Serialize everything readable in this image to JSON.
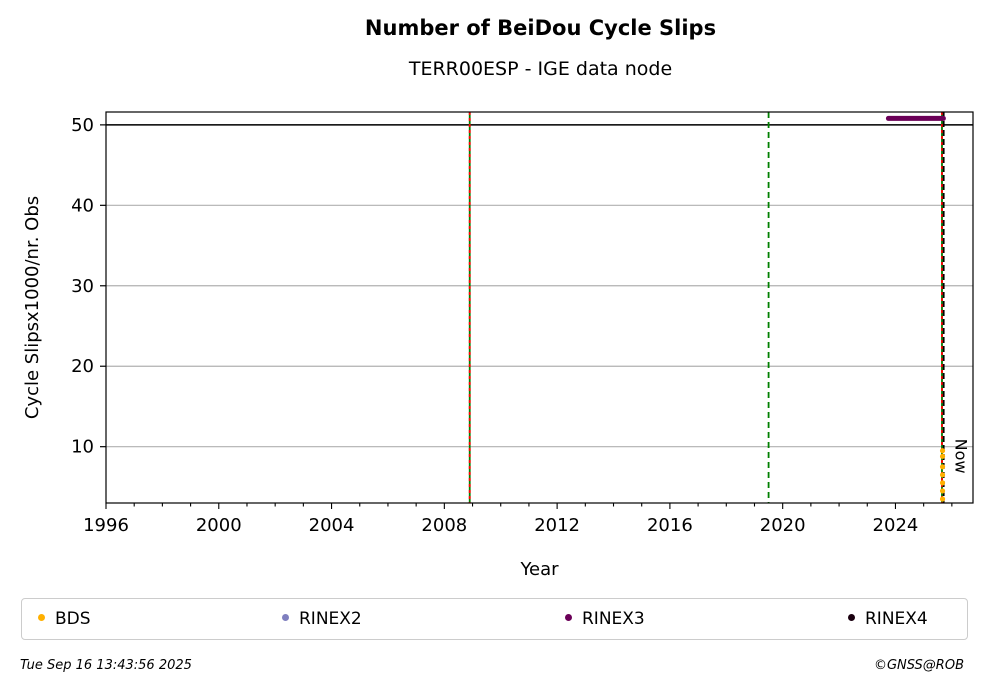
{
  "chart_data": {
    "type": "scatter",
    "title": "Number of BeiDou Cycle Slips",
    "subtitle": "TERR00ESP - IGE data node",
    "xlabel": "Year",
    "ylabel": "Cycle Slipsx1000/nr. Obs",
    "xlim": [
      1996,
      2026.75
    ],
    "ylim": [
      3,
      51.6
    ],
    "xticks": [
      1996,
      2000,
      2004,
      2008,
      2012,
      2016,
      2020,
      2024
    ],
    "xtick_labels": [
      "1996",
      "2000",
      "2004",
      "2008",
      "2012",
      "2016",
      "2020",
      "2024"
    ],
    "yticks": [
      10,
      20,
      30,
      40,
      50
    ],
    "ytick_labels": [
      "10",
      "20",
      "30",
      "40",
      "50"
    ],
    "grid": "horizontal",
    "limit_line": 50,
    "vertical_lines": [
      {
        "x": 2008.9,
        "style": "red-green-dashed"
      },
      {
        "x": 2019.5,
        "style": "green-dashed"
      },
      {
        "x": 2025.65,
        "style": "red-green-dashed"
      }
    ],
    "now_line": {
      "x": 2025.71,
      "label": "Now"
    },
    "series": [
      {
        "name": "BDS",
        "color": "#ffb000",
        "points": [
          [
            2025.67,
            3.5
          ],
          [
            2025.67,
            4.5
          ],
          [
            2025.67,
            5.5
          ],
          [
            2025.67,
            6.5
          ],
          [
            2025.67,
            7.5
          ],
          [
            2025.67,
            8.8
          ],
          [
            2025.67,
            9.5
          ]
        ]
      },
      {
        "name": "RINEX2",
        "color": "#7f7fbf",
        "points": []
      },
      {
        "name": "RINEX3",
        "color": "#6b0058",
        "start": 2023.75,
        "end": 2025.7,
        "y": 50.8
      },
      {
        "name": "RINEX4",
        "color": "#1a0010",
        "points": []
      }
    ],
    "legend": "bottom"
  },
  "footer": {
    "timestamp": "Tue Sep 16 13:43:56 2025",
    "credit": "©GNSS@ROB"
  }
}
